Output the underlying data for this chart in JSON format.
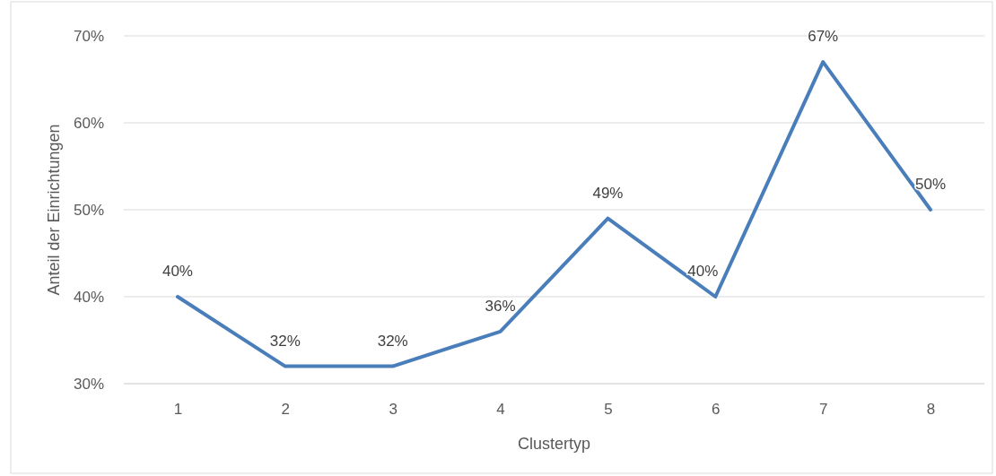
{
  "chart_data": {
    "type": "line",
    "xlabel": "Clustertyp",
    "ylabel": "Anteil der Einrichtungen",
    "categories": [
      "1",
      "2",
      "3",
      "4",
      "5",
      "6",
      "7",
      "8"
    ],
    "series": [
      {
        "color": "#4a7ebb",
        "values": [
          40,
          32,
          32,
          36,
          49,
          40,
          67,
          50
        ],
        "value_labels": [
          "40%",
          "32%",
          "32%",
          "36%",
          "49%",
          "40%",
          "67%",
          "50%"
        ]
      }
    ],
    "ylim": [
      30,
      70
    ],
    "yticks": [
      {
        "value": 30,
        "label": "30%"
      },
      {
        "value": 40,
        "label": "40%"
      },
      {
        "value": 50,
        "label": "50%"
      },
      {
        "value": 60,
        "label": "60%"
      },
      {
        "value": 70,
        "label": "70%"
      }
    ],
    "grid": "y",
    "marker": "none",
    "line_style": "solid"
  }
}
